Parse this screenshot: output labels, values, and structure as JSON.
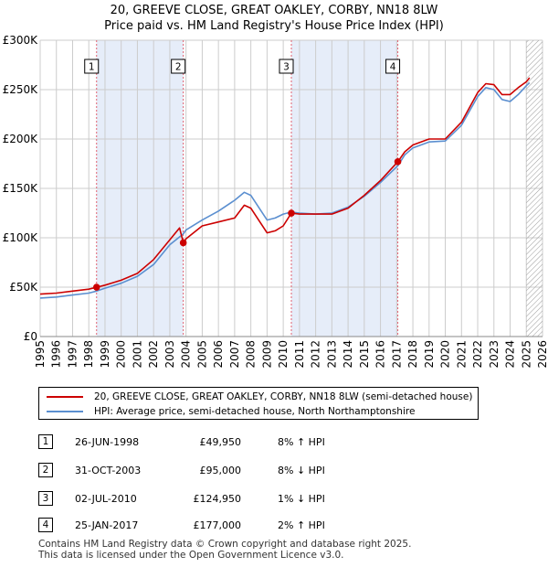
{
  "title_line1": "20, GREEVE CLOSE, GREAT OAKLEY, CORBY, NN18 8LW",
  "title_line2": "Price paid vs. HM Land Registry's House Price Index (HPI)",
  "colors": {
    "property_line": "#cc0000",
    "hpi_line": "#5b8fd0",
    "shade": "#e6edf9",
    "vline": "#e06070",
    "grid": "#cccccc",
    "hatch": "#9a9a9a",
    "marker": "#cc0000"
  },
  "chart_data": {
    "type": "line",
    "title": "Price paid vs. HM Land Registry's House Price Index (HPI)",
    "xlim": [
      1995,
      2026
    ],
    "ylim": [
      0,
      300000
    ],
    "y_ticks": [
      0,
      50000,
      100000,
      150000,
      200000,
      250000,
      300000
    ],
    "y_tick_labels": [
      "£0",
      "£50K",
      "£100K",
      "£150K",
      "£200K",
      "£250K",
      "£300K"
    ],
    "x_ticks": [
      1995,
      1996,
      1997,
      1998,
      1999,
      2000,
      2001,
      2002,
      2003,
      2004,
      2005,
      2006,
      2007,
      2008,
      2009,
      2010,
      2011,
      2012,
      2013,
      2014,
      2015,
      2016,
      2017,
      2018,
      2019,
      2020,
      2021,
      2022,
      2023,
      2024,
      2025,
      2026
    ],
    "x_tick_labels": [
      "1995",
      "1996",
      "1997",
      "1998",
      "1999",
      "2000",
      "2001",
      "2002",
      "2003",
      "2004",
      "2005",
      "2006",
      "2007",
      "2008",
      "2009",
      "2010",
      "2011",
      "2012",
      "2013",
      "2014",
      "2015",
      "2016",
      "2017",
      "2018",
      "2019",
      "2020",
      "2021",
      "2022",
      "2023",
      "2024",
      "2025",
      "2026"
    ],
    "grid": true,
    "shaded_ranges": [
      [
        1998.48,
        2003.83
      ],
      [
        2010.5,
        2017.07
      ]
    ],
    "forecast_hatch_from": 2025.0,
    "series": [
      {
        "name": "20, GREEVE CLOSE, GREAT OAKLEY, CORBY, NN18 8LW (semi-detached house)",
        "x": [
          1995.0,
          1996.0,
          1997.0,
          1998.0,
          1998.48,
          1999.0,
          2000.0,
          2001.0,
          2002.0,
          2003.0,
          2003.6,
          2003.83,
          2004.0,
          2005.0,
          2006.0,
          2007.0,
          2007.6,
          2008.0,
          2009.0,
          2009.5,
          2010.0,
          2010.5,
          2011.0,
          2012.0,
          2013.0,
          2014.0,
          2015.0,
          2016.0,
          2017.07,
          2017.5,
          2018.0,
          2019.0,
          2020.0,
          2021.0,
          2022.0,
          2022.5,
          2023.0,
          2023.5,
          2024.0,
          2024.5,
          2025.0,
          2025.2
        ],
        "values": [
          43000,
          44000,
          46000,
          48000,
          49950,
          52000,
          57000,
          64000,
          78000,
          98000,
          110000,
          95000,
          99000,
          112000,
          116000,
          120000,
          133000,
          130000,
          105000,
          107000,
          112000,
          124950,
          124000,
          124000,
          124000,
          130000,
          143000,
          158000,
          177000,
          187000,
          194000,
          200000,
          200000,
          217000,
          247000,
          256000,
          255000,
          245000,
          245000,
          252000,
          258000,
          262000
        ]
      },
      {
        "name": "HPI: Average price, semi-detached house, North Northamptonshire",
        "x": [
          1995.0,
          1996.0,
          1997.0,
          1998.0,
          1998.48,
          1999.0,
          2000.0,
          2001.0,
          2002.0,
          2003.0,
          2003.83,
          2004.0,
          2005.0,
          2006.0,
          2007.0,
          2007.6,
          2008.0,
          2009.0,
          2009.5,
          2010.0,
          2010.5,
          2011.0,
          2012.0,
          2013.0,
          2014.0,
          2015.0,
          2016.0,
          2017.07,
          2017.5,
          2018.0,
          2019.0,
          2020.0,
          2021.0,
          2022.0,
          2022.5,
          2023.0,
          2023.5,
          2024.0,
          2024.5,
          2025.0,
          2025.2
        ],
        "values": [
          39000,
          40000,
          42000,
          44000,
          46000,
          49000,
          54000,
          61000,
          73000,
          93000,
          104000,
          108000,
          118000,
          127000,
          138000,
          146000,
          143000,
          118000,
          120000,
          124000,
          126000,
          125000,
          124000,
          125000,
          131000,
          142000,
          156000,
          173000,
          184000,
          191000,
          197000,
          198000,
          214000,
          243000,
          252000,
          250000,
          240000,
          238000,
          245000,
          254000,
          257000
        ]
      }
    ],
    "markers": [
      {
        "label": "1",
        "x": 1998.48,
        "y": 49950
      },
      {
        "label": "2",
        "x": 2003.83,
        "y": 95000
      },
      {
        "label": "3",
        "x": 2010.5,
        "y": 124950
      },
      {
        "label": "4",
        "x": 2017.07,
        "y": 177000
      }
    ]
  },
  "legend": {
    "property": "20, GREEVE CLOSE, GREAT OAKLEY, CORBY, NN18 8LW (semi-detached house)",
    "hpi": "HPI: Average price, semi-detached house, North Northamptonshire"
  },
  "transactions": [
    {
      "num": "1",
      "date": "26-JUN-1998",
      "price": "£49,950",
      "hpi": "8% ↑ HPI"
    },
    {
      "num": "2",
      "date": "31-OCT-2003",
      "price": "£95,000",
      "hpi": "8% ↓ HPI"
    },
    {
      "num": "3",
      "date": "02-JUL-2010",
      "price": "£124,950",
      "hpi": "1% ↓ HPI"
    },
    {
      "num": "4",
      "date": "25-JAN-2017",
      "price": "£177,000",
      "hpi": "2% ↑ HPI"
    }
  ],
  "footer_line1": "Contains HM Land Registry data © Crown copyright and database right 2025.",
  "footer_line2": "This data is licensed under the Open Government Licence v3.0."
}
